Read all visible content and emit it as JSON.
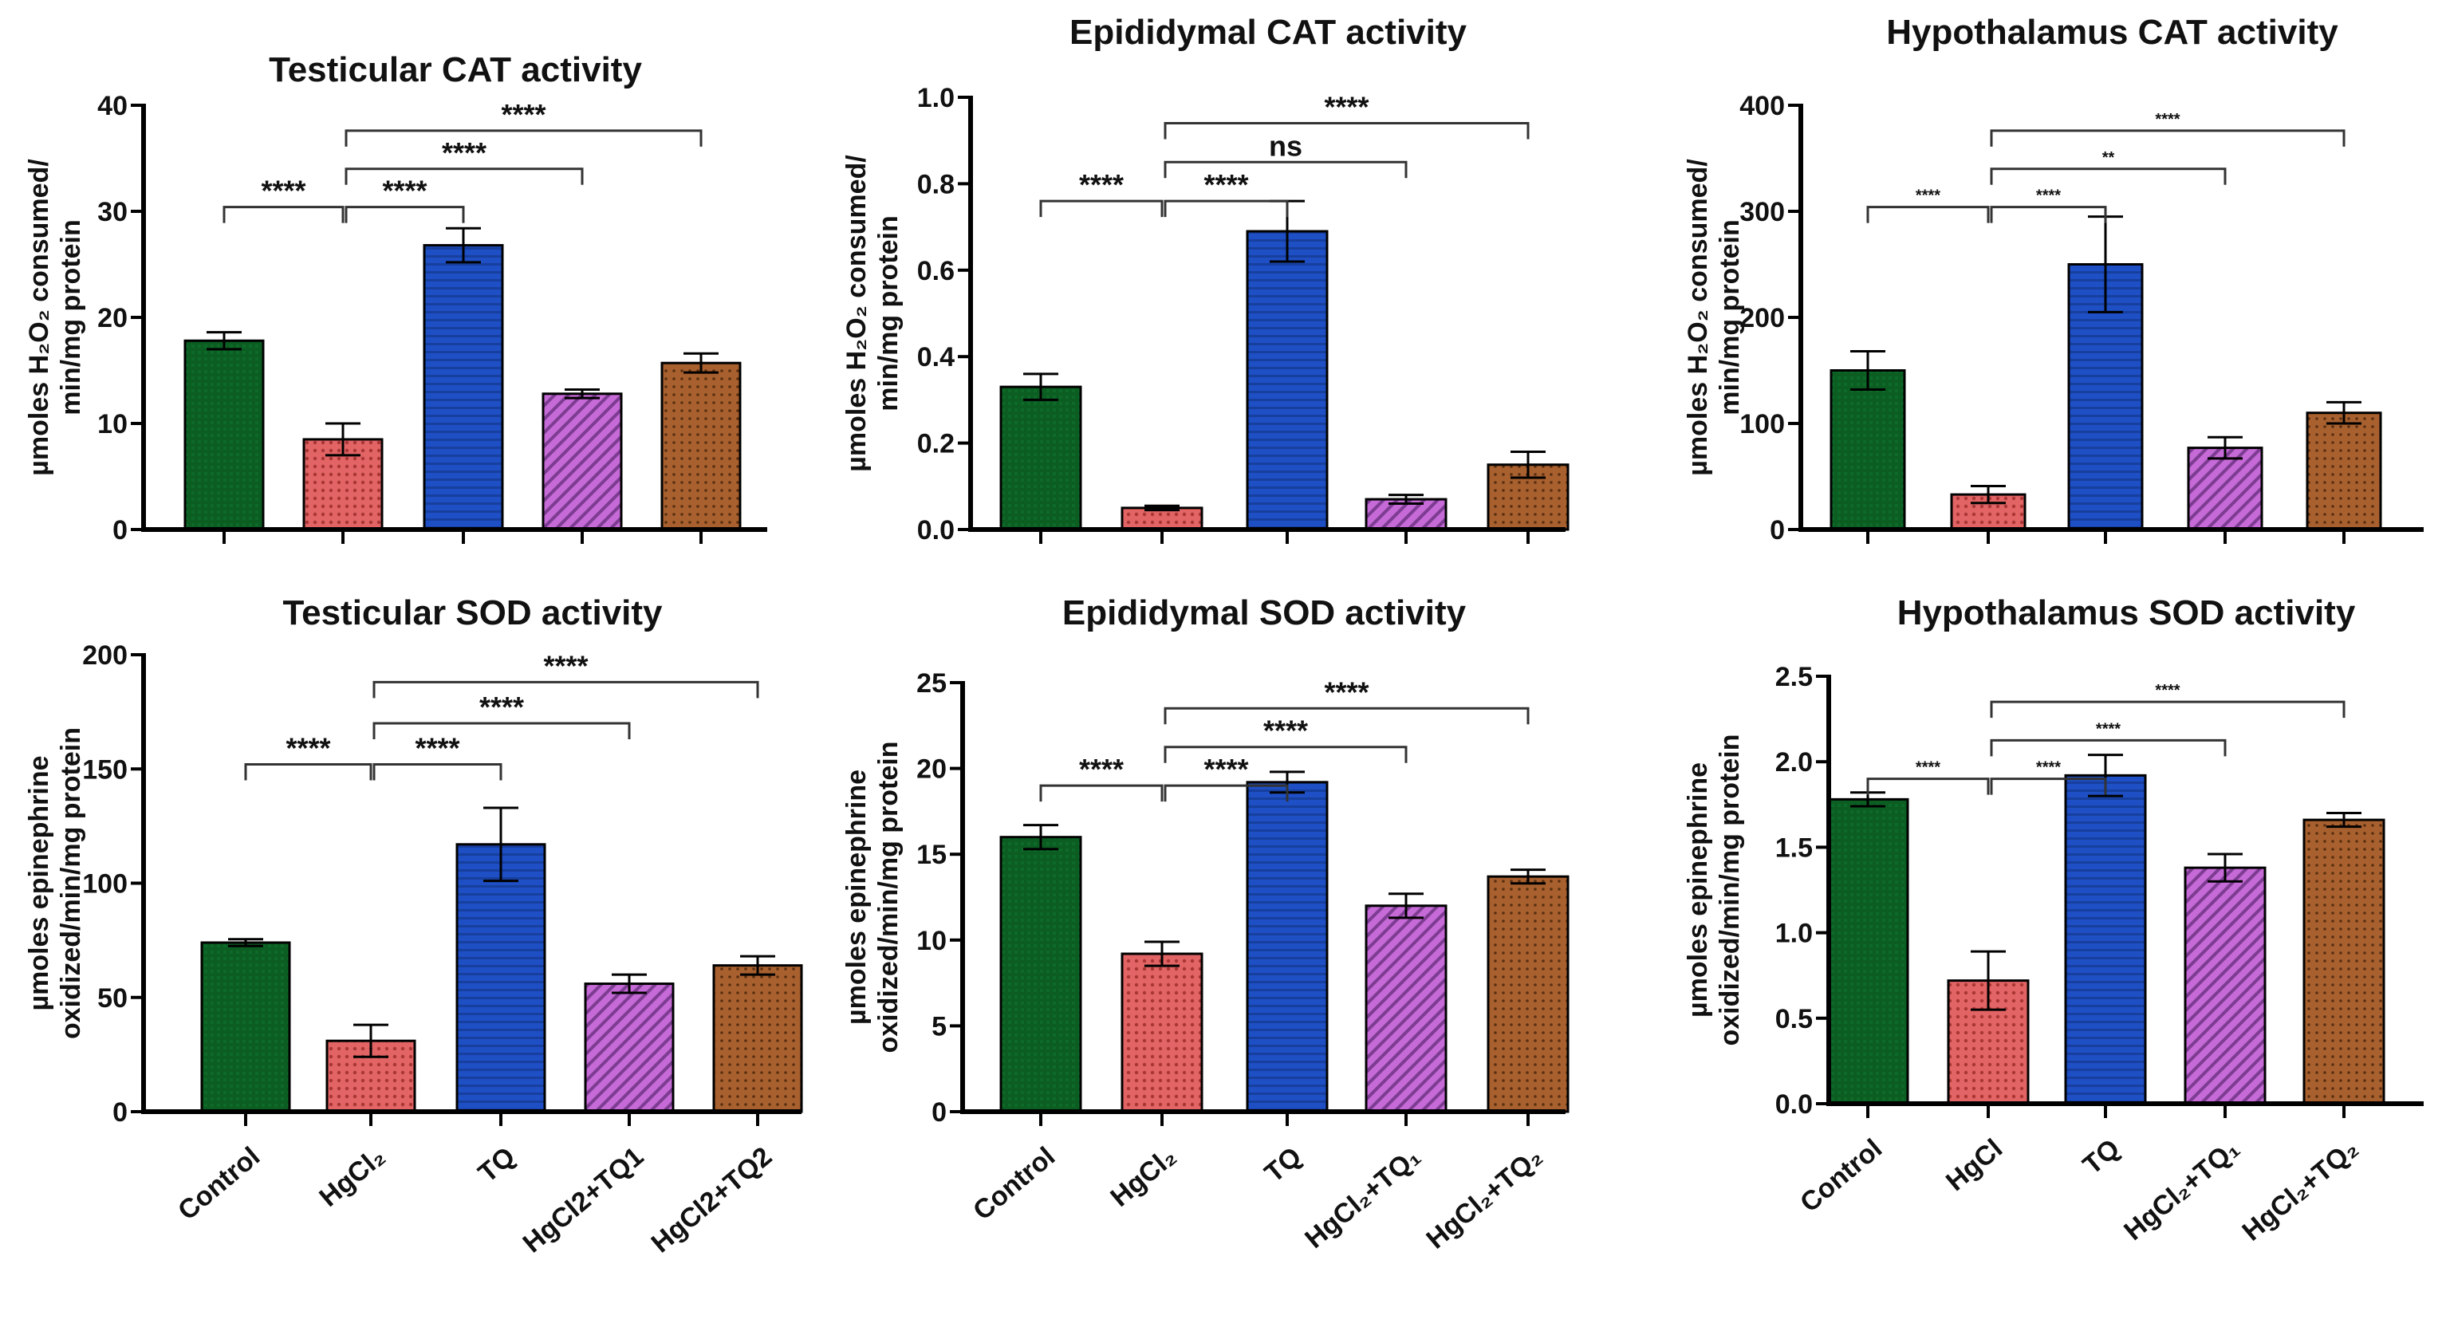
{
  "colors": {
    "Control": "#0b5d22",
    "HgCl2": "#e26464",
    "TQ": "#1e4fc4",
    "HgCl2+TQ1": "#c56ad6",
    "HgCl2+TQ2": "#a8602f"
  },
  "chart_data": [
    {
      "type": "bar",
      "title": "Testicular CAT activity",
      "ylabel": [
        "µmoles H₂O₂ consumed/",
        "min/mg protein"
      ],
      "categories": [
        "Control",
        "HgCl2",
        "TQ",
        "HgCl2+TQ1",
        "HgCl2+TQ2"
      ],
      "xticklabels": [],
      "values": [
        17.8,
        8.5,
        26.8,
        12.8,
        15.7
      ],
      "errors": [
        0.8,
        1.5,
        1.6,
        0.4,
        0.9
      ],
      "ylim": [
        0,
        40
      ],
      "yticks": [
        0,
        10,
        20,
        30,
        40
      ],
      "significance": [
        {
          "from": 0,
          "to": 1,
          "label": "****",
          "level": 0
        },
        {
          "from": 1,
          "to": 2,
          "label": "****",
          "level": 0
        },
        {
          "from": 1,
          "to": 3,
          "label": "****",
          "level": 1
        },
        {
          "from": 1,
          "to": 4,
          "label": "****",
          "level": 2
        }
      ]
    },
    {
      "type": "bar",
      "title": "Epididymal CAT activity",
      "ylabel": [
        "µmoles H₂O₂ consumed/",
        "min/mg protein"
      ],
      "categories": [
        "Control",
        "HgCl2",
        "TQ",
        "HgCl2+TQ1",
        "HgCl2+TQ2"
      ],
      "xticklabels": [],
      "values": [
        0.33,
        0.05,
        0.69,
        0.07,
        0.15
      ],
      "errors": [
        0.03,
        0.005,
        0.07,
        0.01,
        0.03
      ],
      "ylim": [
        0,
        1.0
      ],
      "yticks": [
        "0.0",
        "0.2",
        "0.4",
        "0.6",
        "0.8",
        "1.0"
      ],
      "significance": [
        {
          "from": 0,
          "to": 1,
          "label": "****",
          "level": 0
        },
        {
          "from": 1,
          "to": 2,
          "label": "****",
          "level": 0
        },
        {
          "from": 1,
          "to": 3,
          "label": "ns",
          "level": 1
        },
        {
          "from": 1,
          "to": 4,
          "label": "****",
          "level": 2
        }
      ]
    },
    {
      "type": "bar",
      "title": "Hypothalamus CAT activity",
      "ylabel": [
        "µmoles H₂O₂ consumed/",
        "min/mg protein"
      ],
      "categories": [
        "Control",
        "HgCl2",
        "TQ",
        "HgCl2+TQ1",
        "HgCl2+TQ2"
      ],
      "xticklabels": [],
      "values": [
        150,
        33,
        250,
        77,
        110
      ],
      "errors": [
        18,
        8,
        45,
        10,
        10
      ],
      "ylim": [
        0,
        400
      ],
      "yticks": [
        0,
        100,
        200,
        300,
        400
      ],
      "small_sig": true,
      "significance": [
        {
          "from": 0,
          "to": 1,
          "label": "****",
          "level": 0
        },
        {
          "from": 1,
          "to": 2,
          "label": "****",
          "level": 0
        },
        {
          "from": 1,
          "to": 3,
          "label": "**",
          "level": 1
        },
        {
          "from": 1,
          "to": 4,
          "label": "****",
          "level": 2
        }
      ]
    },
    {
      "type": "bar",
      "title": "Testicular SOD activity",
      "ylabel": [
        "µmoles epinephrine",
        "oxidized/min/mg protein"
      ],
      "categories": [
        "Control",
        "HgCl2",
        "TQ",
        "HgCl2+TQ1",
        "HgCl2+TQ2"
      ],
      "xticklabels": [
        "Control",
        "HgCl₂",
        "TQ",
        "HgCl2+TQ1",
        "HgCl2+TQ2"
      ],
      "values": [
        74,
        31,
        117,
        56,
        64
      ],
      "errors": [
        1.5,
        7,
        16,
        4,
        4
      ],
      "ylim": [
        0,
        200
      ],
      "yticks": [
        0,
        50,
        100,
        150,
        200
      ],
      "significance": [
        {
          "from": 0,
          "to": 1,
          "label": "****",
          "level": 0
        },
        {
          "from": 1,
          "to": 2,
          "label": "****",
          "level": 0
        },
        {
          "from": 1,
          "to": 3,
          "label": "****",
          "level": 1
        },
        {
          "from": 1,
          "to": 4,
          "label": "****",
          "level": 2
        }
      ]
    },
    {
      "type": "bar",
      "title": "Epididymal SOD activity",
      "ylabel": [
        "µmoles epinephrine",
        "oxidized/min/mg protein"
      ],
      "categories": [
        "Control",
        "HgCl2",
        "TQ",
        "HgCl2+TQ1",
        "HgCl2+TQ2"
      ],
      "xticklabels": [
        "Control",
        "HgCl₂",
        "TQ",
        "HgCl₂+TQ₁",
        "HgCl₂+TQ₂"
      ],
      "values": [
        16.0,
        9.2,
        19.2,
        12.0,
        13.7
      ],
      "errors": [
        0.7,
        0.7,
        0.6,
        0.7,
        0.4
      ],
      "ylim": [
        0,
        25
      ],
      "yticks": [
        0,
        5,
        10,
        15,
        20,
        25
      ],
      "significance": [
        {
          "from": 0,
          "to": 1,
          "label": "****",
          "level": 0
        },
        {
          "from": 1,
          "to": 2,
          "label": "****",
          "level": 0
        },
        {
          "from": 1,
          "to": 3,
          "label": "****",
          "level": 1
        },
        {
          "from": 1,
          "to": 4,
          "label": "****",
          "level": 2
        }
      ]
    },
    {
      "type": "bar",
      "title": "Hypothalamus SOD activity",
      "ylabel": [
        "µmoles epinephrine",
        "oxidized/min/mg protein"
      ],
      "categories": [
        "Control",
        "HgCl2",
        "TQ",
        "HgCl2+TQ1",
        "HgCl2+TQ2"
      ],
      "xticklabels": [
        "Control",
        "HgCl",
        "TQ",
        "HgCl₂+TQ₁",
        "HgCl₂+TQ₂"
      ],
      "values": [
        1.78,
        0.72,
        1.92,
        1.38,
        1.66
      ],
      "errors": [
        0.04,
        0.17,
        0.12,
        0.08,
        0.04
      ],
      "ylim": [
        0,
        2.5
      ],
      "yticks": [
        "0.0",
        "0.5",
        "1.0",
        "1.5",
        "2.0",
        "2.5"
      ],
      "small_sig": true,
      "significance": [
        {
          "from": 0,
          "to": 1,
          "label": "****",
          "level": 0
        },
        {
          "from": 1,
          "to": 2,
          "label": "****",
          "level": 0
        },
        {
          "from": 1,
          "to": 3,
          "label": "****",
          "level": 1
        },
        {
          "from": 1,
          "to": 4,
          "label": "****",
          "level": 2
        }
      ]
    }
  ]
}
